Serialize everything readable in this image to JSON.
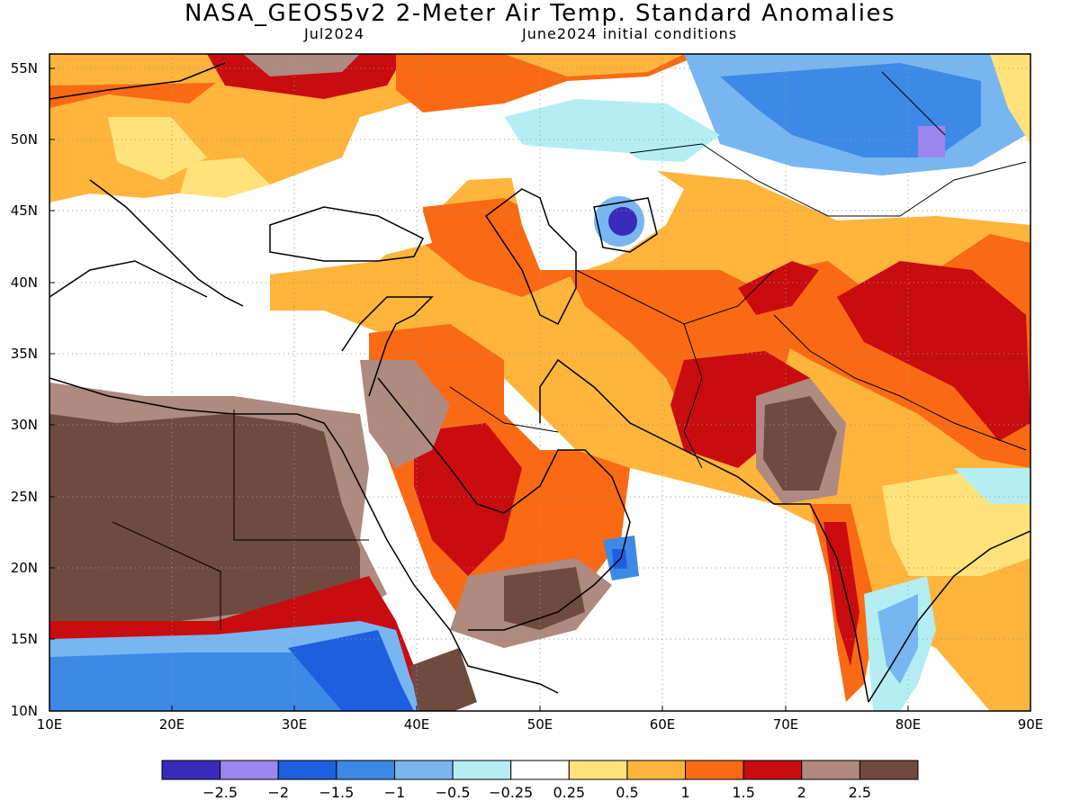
{
  "header": {
    "title": "NASA_GEOS5v2 2-Meter Air Temp. Standard Anomalies",
    "valid_month": "Jul2024",
    "initial_conditions": "June2024 initial conditions"
  },
  "map": {
    "lon_range": [
      10,
      90
    ],
    "lat_range": [
      10,
      56
    ],
    "lon_labels": [
      "10E",
      "20E",
      "30E",
      "40E",
      "50E",
      "60E",
      "70E",
      "80E",
      "90E"
    ],
    "lat_labels": [
      "10N",
      "15N",
      "20N",
      "25N",
      "30N",
      "35N",
      "40N",
      "45N",
      "50N",
      "55N"
    ]
  },
  "colorbar": {
    "colors": [
      "#3a2bb8",
      "#9b86f0",
      "#1e5fe0",
      "#3c8ae6",
      "#78b6f2",
      "#b4eef2",
      "#ffffff",
      "#ffe27a",
      "#ffb43c",
      "#fa6a14",
      "#c80c10",
      "#ae8a80",
      "#6f4a3e"
    ],
    "labels": [
      "−2.5",
      "−2",
      "−1.5",
      "−1",
      "−0.5",
      "−0.25",
      "0.25",
      "0.5",
      "1",
      "1.5",
      "2",
      "2.5"
    ]
  }
}
